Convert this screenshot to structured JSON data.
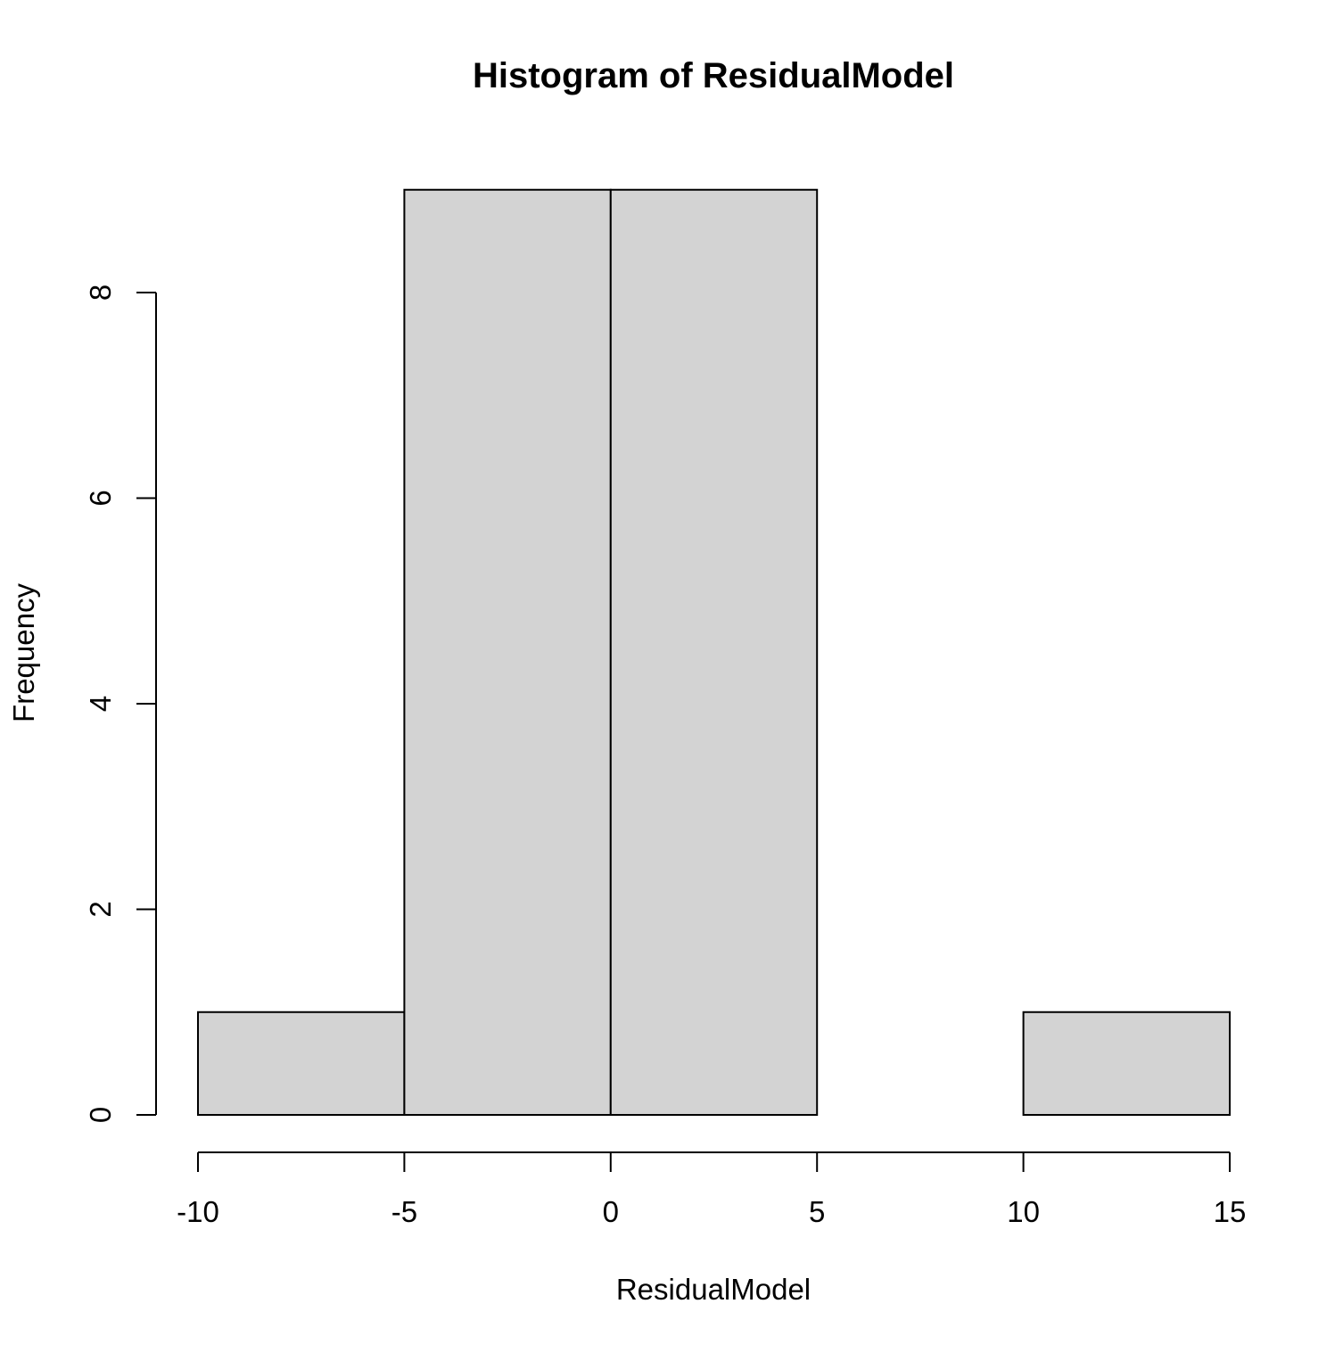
{
  "chart_data": {
    "type": "bar",
    "title": "Histogram of ResidualModel",
    "xlabel": "ResidualModel",
    "ylabel": "Frequency",
    "bins": [
      {
        "start": -10,
        "end": -5,
        "count": 1
      },
      {
        "start": -5,
        "end": 0,
        "count": 9
      },
      {
        "start": 0,
        "end": 5,
        "count": 9
      },
      {
        "start": 5,
        "end": 10,
        "count": 0
      },
      {
        "start": 10,
        "end": 15,
        "count": 1
      }
    ],
    "x_ticks": [
      "-10",
      "-5",
      "0",
      "5",
      "10",
      "15"
    ],
    "y_ticks": [
      "0",
      "2",
      "4",
      "6",
      "8"
    ],
    "xlim": [
      -10,
      15
    ],
    "ylim": [
      0,
      9
    ],
    "grid": false,
    "bar_color": "#d3d3d3",
    "edge_color": "#000000"
  }
}
